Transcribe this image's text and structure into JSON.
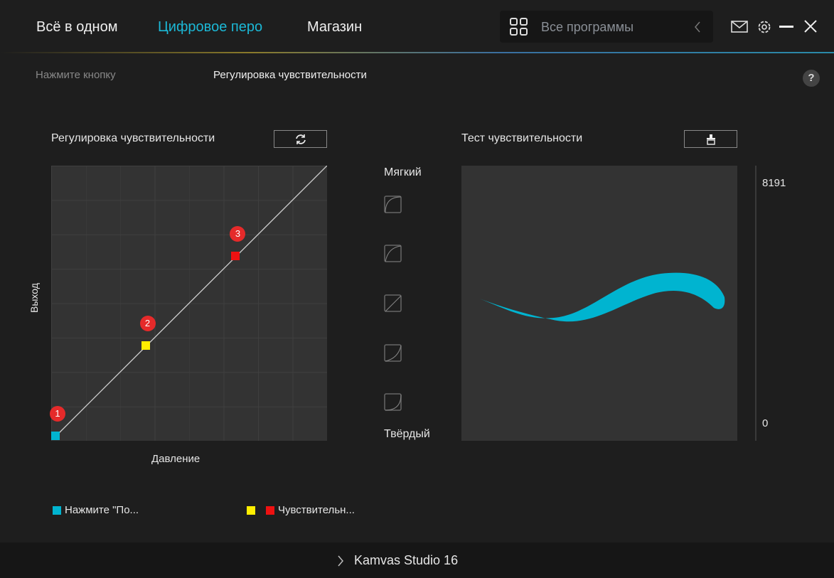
{
  "nav": {
    "tabs": [
      "Всё в одном",
      "Цифровое перо",
      "Магазин"
    ],
    "active": 1,
    "search_placeholder": "Все программы"
  },
  "subtabs": {
    "left": "Нажмите кнопку",
    "right": "Регулировка чувствительности",
    "help": "?"
  },
  "sensitivity": {
    "title": "Регулировка чувствительности",
    "xlabel": "Давление",
    "ylabel": "Выход",
    "points": [
      {
        "label": "1",
        "x": 0.0,
        "y": 0.0,
        "color": "#00b4d0"
      },
      {
        "label": "2",
        "x": 0.333,
        "y": 0.333,
        "color": "#ffee00"
      },
      {
        "label": "3",
        "x": 0.667,
        "y": 0.667,
        "color": "#ee1111"
      }
    ]
  },
  "presets": {
    "soft": "Мягкий",
    "hard": "Твёрдый"
  },
  "test": {
    "title": "Тест чувствительности",
    "max": "8191",
    "min": "0",
    "stroke_color": "#00b4d0"
  },
  "legend": {
    "item1": "Нажмите \"По...",
    "item2": "Чувствительн..."
  },
  "footer": {
    "device": "Kamvas Studio 16"
  },
  "colors": {
    "accent": "#1cb8d6"
  }
}
